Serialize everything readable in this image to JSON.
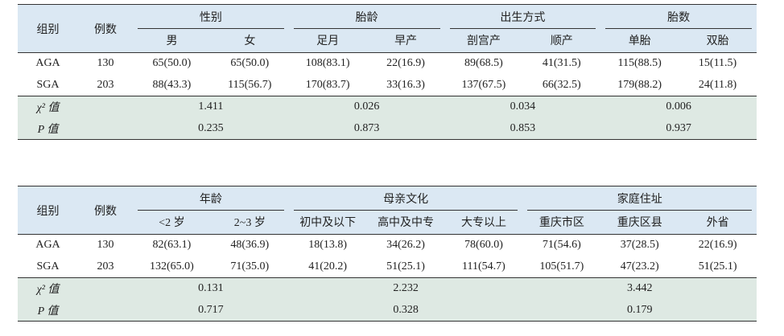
{
  "tables": [
    {
      "header": {
        "group": "组别",
        "count": "例数",
        "groups": [
          {
            "label": "性别",
            "subs": [
              "男",
              "女"
            ]
          },
          {
            "label": "胎龄",
            "subs": [
              "足月",
              "早产"
            ]
          },
          {
            "label": "出生方式",
            "subs": [
              "剖宫产",
              "顺产"
            ]
          },
          {
            "label": "胎数",
            "subs": [
              "单胎",
              "双胎"
            ]
          }
        ]
      },
      "rows": [
        [
          "AGA",
          "130",
          "65(50.0)",
          "65(50.0)",
          "108(83.1)",
          "22(16.9)",
          "89(68.5)",
          "41(31.5)",
          "115(88.5)",
          "15(11.5)"
        ],
        [
          "SGA",
          "203",
          "88(43.3)",
          "115(56.7)",
          "170(83.7)",
          "33(16.3)",
          "137(67.5)",
          "66(32.5)",
          "179(88.2)",
          "24(11.8)"
        ]
      ],
      "stats": [
        {
          "label": "χ² 值",
          "values": [
            "1.411",
            "0.026",
            "0.034",
            "0.006"
          ]
        },
        {
          "label": "P 值",
          "values": [
            "0.235",
            "0.873",
            "0.853",
            "0.937"
          ]
        }
      ]
    },
    {
      "header": {
        "group": "组别",
        "count": "例数",
        "groups": [
          {
            "label": "年龄",
            "subs": [
              "<2 岁",
              "2~3 岁"
            ]
          },
          {
            "label": "母亲文化",
            "subs": [
              "初中及以下",
              "高中及中专",
              "大专以上"
            ]
          },
          {
            "label": "家庭住址",
            "subs": [
              "重庆市区",
              "重庆区县",
              "外省"
            ]
          }
        ]
      },
      "rows": [
        [
          "AGA",
          "130",
          "82(63.1)",
          "48(36.9)",
          "18(13.8)",
          "34(26.2)",
          "78(60.0)",
          "71(54.6)",
          "37(28.5)",
          "22(16.9)"
        ],
        [
          "SGA",
          "203",
          "132(65.0)",
          "71(35.0)",
          "41(20.2)",
          "51(25.1)",
          "111(54.7)",
          "105(51.7)",
          "47(23.2)",
          "51(25.1)"
        ]
      ],
      "stats": [
        {
          "label": "χ² 值",
          "values": [
            "0.131",
            "2.232",
            "3.442"
          ]
        },
        {
          "label": "P 值",
          "values": [
            "0.717",
            "0.328",
            "0.179"
          ]
        }
      ]
    }
  ]
}
